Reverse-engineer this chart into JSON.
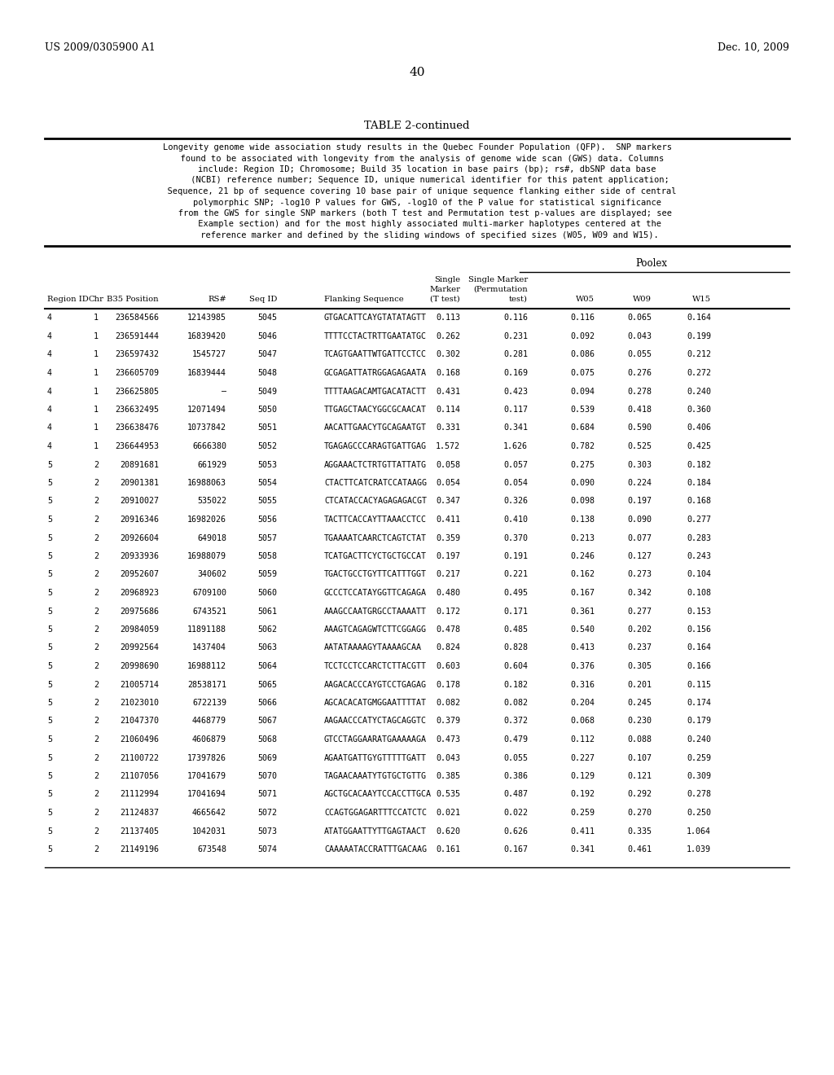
{
  "header_left": "US 2009/0305900 A1",
  "header_right": "Dec. 10, 2009",
  "page_number": "40",
  "table_title": "TABLE 2-continued",
  "desc_lines": [
    "Longevity genome wide association study results in the Quebec Founder Population (QFP).  SNP markers",
    "  found to be associated with longevity from the analysis of genome wide scan (GWS) data. Columns",
    "    include: Region ID; Chromosome; Build 35 location in base pairs (bp); rs#, dbSNP data base",
    "     (NCBI) reference number; Sequence ID, unique numerical identifier for this patent application;",
    "  Sequence, 21 bp of sequence covering 10 base pair of unique sequence flanking either side of central",
    "    polymorphic SNP; -log10 P values for GWS, -log10 of the P value for statistical significance",
    "   from the GWS for single SNP markers (both T test and Permutation test p-values are displayed; see",
    "     Example section) and for the most highly associated multi-marker haplotypes centered at the",
    "     reference marker and defined by the sliding windows of specified sizes (W05, W09 and W15)."
  ],
  "poolex_label": "Poolex",
  "col_header_line1": [
    "",
    "",
    "",
    "",
    "",
    "",
    "Single",
    "Single Marker",
    "",
    "",
    ""
  ],
  "col_header_line2": [
    "",
    "",
    "",
    "",
    "",
    "",
    "Marker",
    "(Permutation",
    "",
    "",
    ""
  ],
  "col_header_line3": [
    "Region ID",
    "Chr",
    "B35 Position",
    "RS#",
    "Seq ID",
    "Flanking Sequence",
    "(T test)",
    "test)",
    "W05",
    "W09",
    "W15"
  ],
  "rows": [
    [
      "4",
      "1",
      "236584566",
      "12143985",
      "5045",
      "GTGACATTCAYGTATATAGTT",
      "0.113",
      "0.116",
      "0.116",
      "0.065",
      "0.164"
    ],
    [
      "4",
      "1",
      "236591444",
      "16839420",
      "5046",
      "TTTTCCTACTRTTGAATATGC",
      "0.262",
      "0.231",
      "0.092",
      "0.043",
      "0.199"
    ],
    [
      "4",
      "1",
      "236597432",
      "1545727",
      "5047",
      "TCAGTGAATTWTGATTCCTCC",
      "0.302",
      "0.281",
      "0.086",
      "0.055",
      "0.212"
    ],
    [
      "4",
      "1",
      "236605709",
      "16839444",
      "5048",
      "GCGAGATTATRGGAGAGAATA",
      "0.168",
      "0.169",
      "0.075",
      "0.276",
      "0.272"
    ],
    [
      "4",
      "1",
      "236625805",
      "–",
      "5049",
      "TTTTAAGACAMTGACATACTT",
      "0.431",
      "0.423",
      "0.094",
      "0.278",
      "0.240"
    ],
    [
      "4",
      "1",
      "236632495",
      "12071494",
      "5050",
      "TTGAGCTAACYGGCGCAACAT",
      "0.114",
      "0.117",
      "0.539",
      "0.418",
      "0.360"
    ],
    [
      "4",
      "1",
      "236638476",
      "10737842",
      "5051",
      "AACATTGAACYTGCAGAATGT",
      "0.331",
      "0.341",
      "0.684",
      "0.590",
      "0.406"
    ],
    [
      "4",
      "1",
      "236644953",
      "6666380",
      "5052",
      "TGAGAGCCCARAGTGATTGAG",
      "1.572",
      "1.626",
      "0.782",
      "0.525",
      "0.425"
    ],
    [
      "5",
      "2",
      "20891681",
      "661929",
      "5053",
      "AGGAAACTCTRTGTTATTATG",
      "0.058",
      "0.057",
      "0.275",
      "0.303",
      "0.182"
    ],
    [
      "5",
      "2",
      "20901381",
      "16988063",
      "5054",
      "CTACTTCATCRATCCATAAGG",
      "0.054",
      "0.054",
      "0.090",
      "0.224",
      "0.184"
    ],
    [
      "5",
      "2",
      "20910027",
      "535022",
      "5055",
      "CTCATACCACYAGAGAGACGT",
      "0.347",
      "0.326",
      "0.098",
      "0.197",
      "0.168"
    ],
    [
      "5",
      "2",
      "20916346",
      "16982026",
      "5056",
      "TACTTCACCAYTTAAACCTCC",
      "0.411",
      "0.410",
      "0.138",
      "0.090",
      "0.277"
    ],
    [
      "5",
      "2",
      "20926604",
      "649018",
      "5057",
      "TGAAAATCAARCTCAGTCTAT",
      "0.359",
      "0.370",
      "0.213",
      "0.077",
      "0.283"
    ],
    [
      "5",
      "2",
      "20933936",
      "16988079",
      "5058",
      "TCATGACTTCYCTGCTGCCAT",
      "0.197",
      "0.191",
      "0.246",
      "0.127",
      "0.243"
    ],
    [
      "5",
      "2",
      "20952607",
      "340602",
      "5059",
      "TGACTGCCTGYTTCATTTGGT",
      "0.217",
      "0.221",
      "0.162",
      "0.273",
      "0.104"
    ],
    [
      "5",
      "2",
      "20968923",
      "6709100",
      "5060",
      "GCCCTCCATAYGGTTCAGAGA",
      "0.480",
      "0.495",
      "0.167",
      "0.342",
      "0.108"
    ],
    [
      "5",
      "2",
      "20975686",
      "6743521",
      "5061",
      "AAAGCCAATGRGCCTAAAATT",
      "0.172",
      "0.171",
      "0.361",
      "0.277",
      "0.153"
    ],
    [
      "5",
      "2",
      "20984059",
      "11891188",
      "5062",
      "AAAGTCAGAGWTCTTCGGAGG",
      "0.478",
      "0.485",
      "0.540",
      "0.202",
      "0.156"
    ],
    [
      "5",
      "2",
      "20992564",
      "1437404",
      "5063",
      "AATATAAAAGYTAAAAGCAA",
      "0.824",
      "0.828",
      "0.413",
      "0.237",
      "0.164"
    ],
    [
      "5",
      "2",
      "20998690",
      "16988112",
      "5064",
      "TCCTCCTCCARCTCTTACGTT",
      "0.603",
      "0.604",
      "0.376",
      "0.305",
      "0.166"
    ],
    [
      "5",
      "2",
      "21005714",
      "28538171",
      "5065",
      "AAGACACCCAYGTCCTGAGAG",
      "0.178",
      "0.182",
      "0.316",
      "0.201",
      "0.115"
    ],
    [
      "5",
      "2",
      "21023010",
      "6722139",
      "5066",
      "AGCACACATGMGGAATTTTAT",
      "0.082",
      "0.082",
      "0.204",
      "0.245",
      "0.174"
    ],
    [
      "5",
      "2",
      "21047370",
      "4468779",
      "5067",
      "AAGAACCCATYCTAGCAGGTC",
      "0.379",
      "0.372",
      "0.068",
      "0.230",
      "0.179"
    ],
    [
      "5",
      "2",
      "21060496",
      "4606879",
      "5068",
      "GTCCTAGGAARATGAAAAAGA",
      "0.473",
      "0.479",
      "0.112",
      "0.088",
      "0.240"
    ],
    [
      "5",
      "2",
      "21100722",
      "17397826",
      "5069",
      "AGAATGATTGYGTTTTTGATT",
      "0.043",
      "0.055",
      "0.227",
      "0.107",
      "0.259"
    ],
    [
      "5",
      "2",
      "21107056",
      "17041679",
      "5070",
      "TAGAACAAATYTGTGCTGTTG",
      "0.385",
      "0.386",
      "0.129",
      "0.121",
      "0.309"
    ],
    [
      "5",
      "2",
      "21112994",
      "17041694",
      "5071",
      "AGCTGCACAAYTCCACCTTGCA",
      "0.535",
      "0.487",
      "0.192",
      "0.292",
      "0.278"
    ],
    [
      "5",
      "2",
      "21124837",
      "4665642",
      "5072",
      "CCAGTGGAGARTTTCCATCTC",
      "0.021",
      "0.022",
      "0.259",
      "0.270",
      "0.250"
    ],
    [
      "5",
      "2",
      "21137405",
      "1042031",
      "5073",
      "ATATGGAATTYTTGAGTAACT",
      "0.620",
      "0.626",
      "0.411",
      "0.335",
      "1.064"
    ],
    [
      "5",
      "2",
      "21149196",
      "673548",
      "5074",
      "CAAAAATACCRATTTGACAAG",
      "0.161",
      "0.167",
      "0.341",
      "0.461",
      "1.039"
    ]
  ],
  "bg_color": "#ffffff",
  "text_color": "#000000"
}
